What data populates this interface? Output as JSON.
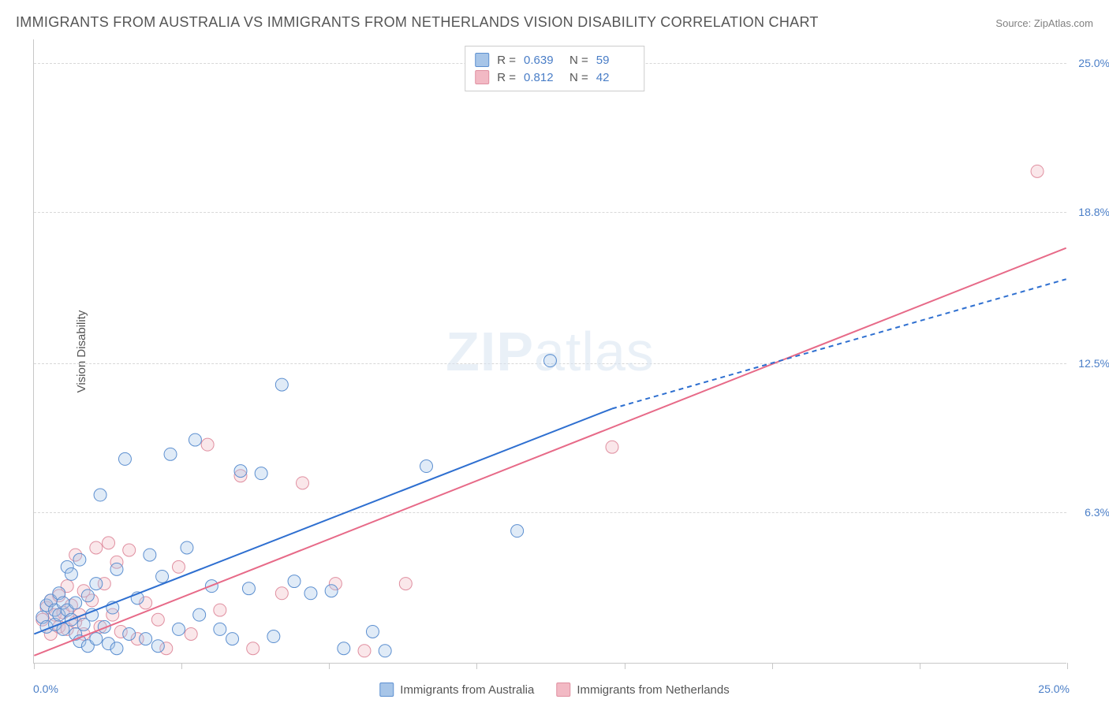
{
  "title": "IMMIGRANTS FROM AUSTRALIA VS IMMIGRANTS FROM NETHERLANDS VISION DISABILITY CORRELATION CHART",
  "source_label": "Source:",
  "source_value": "ZipAtlas.com",
  "y_axis_label": "Vision Disability",
  "watermark_bold": "ZIP",
  "watermark_light": "atlas",
  "colors": {
    "series_a_fill": "#a7c5e8",
    "series_a_stroke": "#5c8fd0",
    "series_b_fill": "#f2b9c4",
    "series_b_stroke": "#e08fa0",
    "regression_a": "#2e6fd0",
    "regression_b": "#e76a88",
    "grid": "#d8d8d8",
    "axis": "#c8c8c8",
    "text_blue": "#4a7ec7",
    "text_gray": "#555555"
  },
  "axes": {
    "xmin": 0.0,
    "xmax": 25.0,
    "ymin": 0.0,
    "ymax": 26.0,
    "x_min_label": "0.0%",
    "x_max_label": "25.0%",
    "y_ticks": [
      {
        "v": 6.3,
        "label": "6.3%"
      },
      {
        "v": 12.5,
        "label": "12.5%"
      },
      {
        "v": 18.8,
        "label": "18.8%"
      },
      {
        "v": 25.0,
        "label": "25.0%"
      }
    ],
    "x_tick_positions": [
      0,
      3.57,
      7.14,
      10.71,
      14.29,
      17.86,
      21.43,
      25.0
    ]
  },
  "rn_box": {
    "rows": [
      {
        "r_label": "R =",
        "r_value": "0.639",
        "n_label": "N =",
        "n_value": "59",
        "swatch": "a"
      },
      {
        "r_label": "R =",
        "r_value": "0.812",
        "n_label": "N =",
        "n_value": "42",
        "swatch": "b"
      }
    ]
  },
  "legend": {
    "items": [
      {
        "label": "Immigrants from Australia",
        "swatch": "a"
      },
      {
        "label": "Immigrants from Netherlands",
        "swatch": "b"
      }
    ]
  },
  "marker_radius": 8,
  "regression_lines": {
    "a_solid": {
      "x1": 0.0,
      "y1": 1.2,
      "x2": 14.0,
      "y2": 10.6
    },
    "a_dashed": {
      "x1": 14.0,
      "y1": 10.6,
      "x2": 25.0,
      "y2": 16.0
    },
    "b": {
      "x1": 0.0,
      "y1": 0.3,
      "x2": 25.0,
      "y2": 17.3
    }
  },
  "series_a": [
    [
      0.2,
      1.9
    ],
    [
      0.3,
      2.4
    ],
    [
      0.3,
      1.5
    ],
    [
      0.4,
      2.6
    ],
    [
      0.5,
      1.6
    ],
    [
      0.5,
      2.2
    ],
    [
      0.6,
      2.9
    ],
    [
      0.6,
      2.0
    ],
    [
      0.7,
      1.4
    ],
    [
      0.7,
      2.5
    ],
    [
      0.8,
      4.0
    ],
    [
      0.8,
      2.2
    ],
    [
      0.9,
      1.8
    ],
    [
      0.9,
      3.7
    ],
    [
      1.0,
      2.5
    ],
    [
      1.0,
      1.2
    ],
    [
      1.1,
      4.3
    ],
    [
      1.1,
      0.9
    ],
    [
      1.2,
      1.6
    ],
    [
      1.3,
      2.8
    ],
    [
      1.3,
      0.7
    ],
    [
      1.4,
      2.0
    ],
    [
      1.5,
      3.3
    ],
    [
      1.5,
      1.0
    ],
    [
      1.6,
      7.0
    ],
    [
      1.7,
      1.5
    ],
    [
      1.8,
      0.8
    ],
    [
      1.9,
      2.3
    ],
    [
      2.0,
      3.9
    ],
    [
      2.0,
      0.6
    ],
    [
      2.2,
      8.5
    ],
    [
      2.3,
      1.2
    ],
    [
      2.5,
      2.7
    ],
    [
      2.7,
      1.0
    ],
    [
      2.8,
      4.5
    ],
    [
      3.0,
      0.7
    ],
    [
      3.1,
      3.6
    ],
    [
      3.3,
      8.7
    ],
    [
      3.5,
      1.4
    ],
    [
      3.7,
      4.8
    ],
    [
      3.9,
      9.3
    ],
    [
      4.0,
      2.0
    ],
    [
      4.3,
      3.2
    ],
    [
      4.5,
      1.4
    ],
    [
      4.8,
      1.0
    ],
    [
      5.0,
      8.0
    ],
    [
      5.2,
      3.1
    ],
    [
      5.5,
      7.9
    ],
    [
      5.8,
      1.1
    ],
    [
      6.0,
      11.6
    ],
    [
      6.3,
      3.4
    ],
    [
      6.7,
      2.9
    ],
    [
      7.2,
      3.0
    ],
    [
      7.5,
      0.6
    ],
    [
      8.2,
      1.3
    ],
    [
      8.5,
      0.5
    ],
    [
      9.5,
      8.2
    ],
    [
      11.7,
      5.5
    ],
    [
      12.5,
      12.6
    ]
  ],
  "series_b": [
    [
      0.2,
      1.8
    ],
    [
      0.3,
      2.3
    ],
    [
      0.4,
      1.2
    ],
    [
      0.4,
      2.6
    ],
    [
      0.5,
      2.0
    ],
    [
      0.6,
      1.5
    ],
    [
      0.6,
      2.8
    ],
    [
      0.7,
      2.1
    ],
    [
      0.8,
      1.4
    ],
    [
      0.8,
      3.2
    ],
    [
      0.9,
      2.4
    ],
    [
      1.0,
      1.7
    ],
    [
      1.0,
      4.5
    ],
    [
      1.1,
      2.0
    ],
    [
      1.2,
      3.0
    ],
    [
      1.2,
      1.2
    ],
    [
      1.4,
      2.6
    ],
    [
      1.5,
      4.8
    ],
    [
      1.6,
      1.5
    ],
    [
      1.7,
      3.3
    ],
    [
      1.8,
      5.0
    ],
    [
      1.9,
      2.0
    ],
    [
      2.0,
      4.2
    ],
    [
      2.1,
      1.3
    ],
    [
      2.3,
      4.7
    ],
    [
      2.5,
      1.0
    ],
    [
      2.7,
      2.5
    ],
    [
      3.0,
      1.8
    ],
    [
      3.2,
      0.6
    ],
    [
      3.5,
      4.0
    ],
    [
      3.8,
      1.2
    ],
    [
      4.2,
      9.1
    ],
    [
      4.5,
      2.2
    ],
    [
      5.0,
      7.8
    ],
    [
      5.3,
      0.6
    ],
    [
      6.0,
      2.9
    ],
    [
      6.5,
      7.5
    ],
    [
      7.3,
      3.3
    ],
    [
      8.0,
      0.5
    ],
    [
      9.0,
      3.3
    ],
    [
      14.0,
      9.0
    ],
    [
      24.3,
      20.5
    ]
  ]
}
